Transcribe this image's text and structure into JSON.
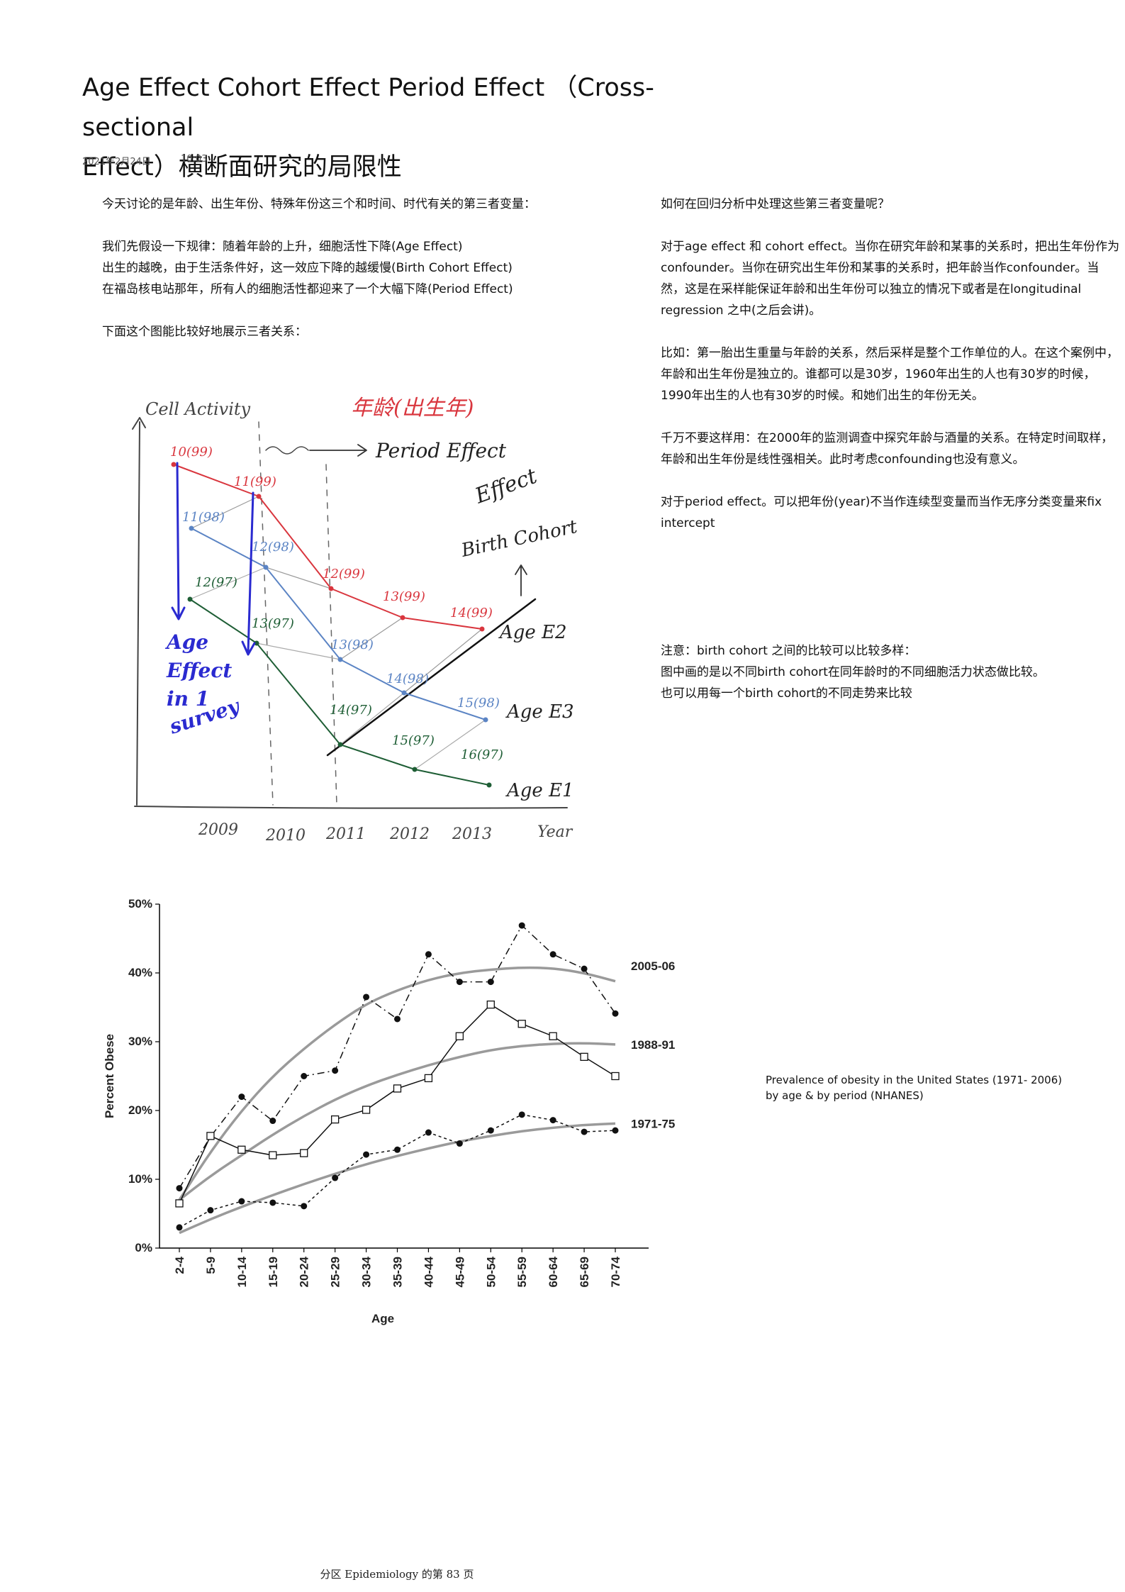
{
  "page": {
    "title_line1": "Age Effect Cohort Effect Period Effect （Cross-sectional",
    "title_line2": "Effect）横断面研究的局限性",
    "date": "2021年2月24日",
    "time": "10:03"
  },
  "left_column": {
    "p1": "今天讨论的是年龄、出生年份、特殊年份这三个和时间、时代有关的第三者变量：",
    "p2_l1": "我们先假设一下规律：随着年龄的上升，细胞活性下降(Age Effect)",
    "p2_l2": "出生的越晚，由于生活条件好，这一效应下降的越缓慢(Birth Cohort Effect)",
    "p2_l3": "在福岛核电站那年，所有人的细胞活性都迎来了一个大幅下降(Period Effect)",
    "p3": "下面这个图能比较好地展示三者关系："
  },
  "right_column": {
    "p1": "如何在回归分析中处理这些第三者变量呢？",
    "p2": "对于age effect 和 cohort effect。当你在研究年龄和某事的关系时，把出生年份作为confounder。当你在研究出生年份和某事的关系时，把年龄当作confounder。当然，这是在采样能保证年龄和出生年份可以独立的情况下或者是在longitudinal regression 之中(之后会讲)。",
    "p3": "比如：第一胎出生重量与年龄的关系，然后采样是整个工作单位的人。在这个案例中，年龄和出生年份是独立的。谁都可以是30岁，1960年出生的人也有30岁的时候，1990年出生的人也有30岁的时候。和她们出生的年份无关。",
    "p4": "千万不要这样用：在2000年的监测调查中探究年龄与酒量的关系。在特定时间取样，年龄和出生年份是线性强相关。此时考虑confounding也没有意义。",
    "p5": "对于period effect。可以把年份(year)不当作连续型变量而当作无序分类变量来fix intercept",
    "p6_l1": "注意：birth cohort 之间的比较可以比较多样：",
    "p6_l2": "图中画的是以不同birth cohort在同年龄时的不同细胞活力状态做比较。",
    "p6_l3": "也可以用每一个birth cohort的不同走势来比较"
  },
  "sketch": {
    "y_label": "Cell Activity",
    "x_label": "Year",
    "top_label": "年龄(出生年)",
    "period_label": "Period Effect",
    "effect_label": "Effect",
    "birth_cohort_label": "Birth Cohort",
    "age_effect_l1": "Age",
    "age_effect_l2": "Effect",
    "age_effect_l3": "in 1",
    "age_effect_l4": "survey",
    "line_labels": [
      "Age E2",
      "Age E3",
      "Age E1"
    ],
    "x_ticks": [
      "2009",
      "2010",
      "2011",
      "2012",
      "2013"
    ],
    "point_labels": [
      "10(99)",
      "11(99)",
      "11(98)",
      "12(98)",
      "12(97)",
      "13(97)",
      "12(99)",
      "13(99)",
      "14(99)",
      "13(98)",
      "14(98)",
      "15(98)",
      "14(97)",
      "15(97)",
      "16(97)"
    ],
    "colors": {
      "red": "#d9363e",
      "blue": "#5b84c4",
      "green": "#1e5e35",
      "black": "#111111",
      "pen": "#2a2ad0"
    }
  },
  "chart_data": {
    "type": "line",
    "categories": [
      "2-4",
      "5-9",
      "10-14",
      "15-19",
      "20-24",
      "25-29",
      "30-34",
      "35-39",
      "40-44",
      "45-49",
      "50-54",
      "55-59",
      "60-64",
      "65-69",
      "70-74"
    ],
    "series": [
      {
        "name": "2005-06",
        "values": [
          8.7,
          16.2,
          22,
          18.5,
          25,
          25.8,
          36.5,
          33.3,
          42.7,
          38.7,
          38.7,
          46.9,
          42.7,
          40.6,
          34.1
        ]
      },
      {
        "name": "1988-91",
        "values": [
          6.5,
          16.3,
          14.3,
          13.5,
          13.8,
          18.7,
          20.1,
          23.2,
          24.7,
          30.8,
          35.4,
          32.6,
          30.8,
          27.8,
          25
        ]
      },
      {
        "name": "1971-75",
        "values": [
          3,
          5.5,
          6.8,
          6.6,
          6.1,
          10.2,
          13.6,
          14.3,
          16.8,
          15.2,
          17.1,
          19.4,
          18.6,
          16.9,
          17.1
        ]
      }
    ],
    "smooth_series": [
      [
        7,
        14,
        20,
        25,
        29,
        32.5,
        35.5,
        37.5,
        39,
        40,
        40.5,
        40.8,
        40.7,
        40,
        38.8
      ],
      [
        7,
        10.5,
        13.5,
        16.5,
        19.2,
        21.6,
        23.6,
        25.2,
        26.6,
        27.8,
        28.8,
        29.4,
        29.7,
        29.8,
        29.6
      ],
      [
        2.2,
        4.2,
        6,
        7.7,
        9.3,
        10.8,
        12.2,
        13.4,
        14.5,
        15.5,
        16.3,
        17,
        17.5,
        17.9,
        18.1
      ]
    ],
    "xlabel": "Age",
    "ylabel": "Percent Obese",
    "yticks": [
      "0%",
      "10%",
      "20%",
      "30%",
      "40%",
      "50%"
    ],
    "ylim": [
      0,
      50
    ],
    "legend": "right-end labels"
  },
  "caption": {
    "line1": "Prevalence of obesity in the United States (1971- 2006)",
    "line2": "by age & by period (NHANES)"
  },
  "footer": "分区 Epidemiology 的第 83 页"
}
